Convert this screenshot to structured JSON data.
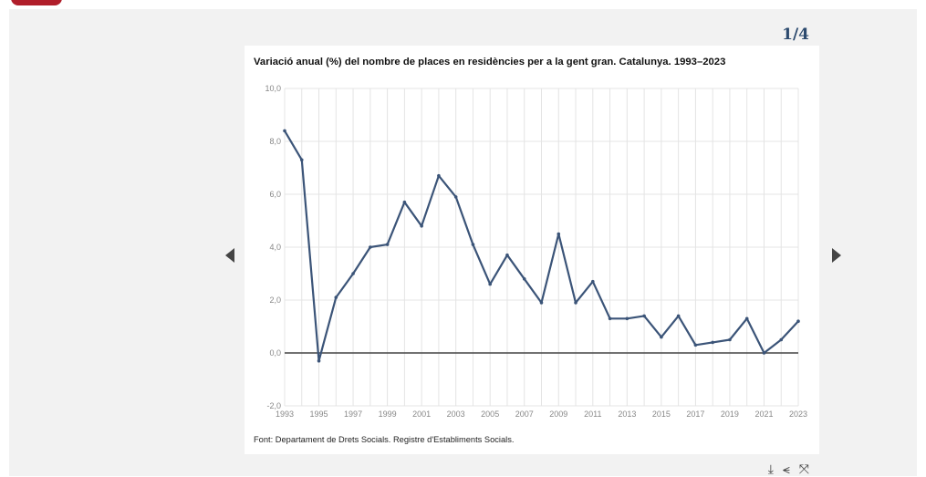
{
  "pager": {
    "label": "1/4"
  },
  "nav": {
    "prev_icon": "triangle-left",
    "next_icon": "triangle-right"
  },
  "tools": {
    "download_icon": "download-icon",
    "share_icon": "share-icon",
    "fullscreen_icon": "expand-icon"
  },
  "colors": {
    "brand": "#b01e2a",
    "line": "#3b5478",
    "pager": "#2c4a6e"
  },
  "chart_data": {
    "type": "line",
    "title": "Variació anual (%) del nombre de places en residències per a la gent gran. Catalunya. 1993–2023",
    "source": "Font: Departament de Drets Socials. Registre d'Establiments Socials.",
    "xlabel": "",
    "ylabel": "",
    "x": [
      1993,
      1994,
      1995,
      1996,
      1997,
      1998,
      1999,
      2000,
      2001,
      2002,
      2003,
      2004,
      2005,
      2006,
      2007,
      2008,
      2009,
      2010,
      2011,
      2012,
      2013,
      2014,
      2015,
      2016,
      2017,
      2018,
      2019,
      2020,
      2021,
      2022,
      2023
    ],
    "values": [
      8.4,
      7.3,
      -0.3,
      2.1,
      3.0,
      4.0,
      4.1,
      5.7,
      4.8,
      6.7,
      5.9,
      4.1,
      2.6,
      3.7,
      2.8,
      1.9,
      4.5,
      1.9,
      2.7,
      1.3,
      1.3,
      1.4,
      0.6,
      1.4,
      0.3,
      0.4,
      0.5,
      1.3,
      0.0,
      0.5,
      1.2
    ],
    "xticks": [
      "1993",
      "1995",
      "1997",
      "1999",
      "2001",
      "2003",
      "2005",
      "2007",
      "2009",
      "2011",
      "2013",
      "2015",
      "2017",
      "2019",
      "2021",
      "2023"
    ],
    "yticks": [
      "-2,0",
      "0,0",
      "2,0",
      "4,0",
      "6,0",
      "8,0",
      "10,0"
    ],
    "ylim": [
      -2,
      10
    ],
    "grid": true
  }
}
